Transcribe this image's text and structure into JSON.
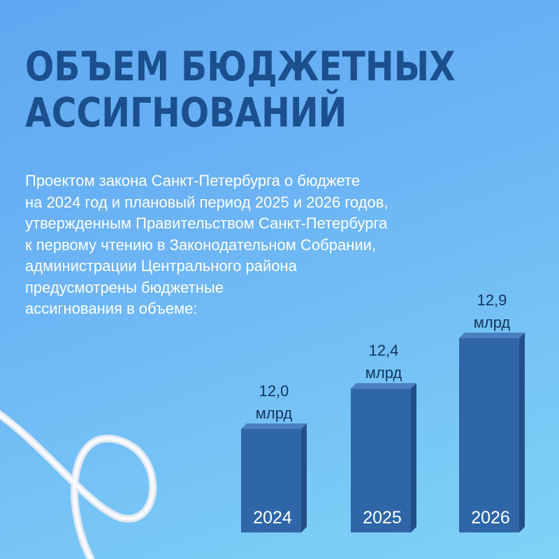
{
  "header": {
    "title_lines": [
      "ОБЪЕМ БЮДЖЕТНЫХ",
      "АССИГНОВАНИЙ"
    ]
  },
  "description": {
    "lines": [
      "Проектом закона Санкт-Петербурга о бюджете",
      "на 2024 год и плановый период 2025 и 2026 годов,",
      "утвержденным Правительством Санкт-Петербурга",
      "к первому чтению в Законодательном Собрании,",
      "администрации Центрального района",
      "предусмотрены бюджетные",
      "ассигнования в объеме:"
    ]
  },
  "colors": {
    "title": "#1b4f8e",
    "bar_front": "#2f66a8",
    "bar_top": "#4a80c0",
    "bar_side": "#244f86",
    "label": "#12335e"
  },
  "chart_data": {
    "type": "bar",
    "title": "",
    "xlabel": "",
    "ylabel": "",
    "categories": [
      "2024",
      "2025",
      "2026"
    ],
    "values": [
      12.0,
      12.4,
      12.9
    ],
    "value_labels": [
      "12,0",
      "12,4",
      "12,9"
    ],
    "unit": "млрд",
    "grid": false
  }
}
